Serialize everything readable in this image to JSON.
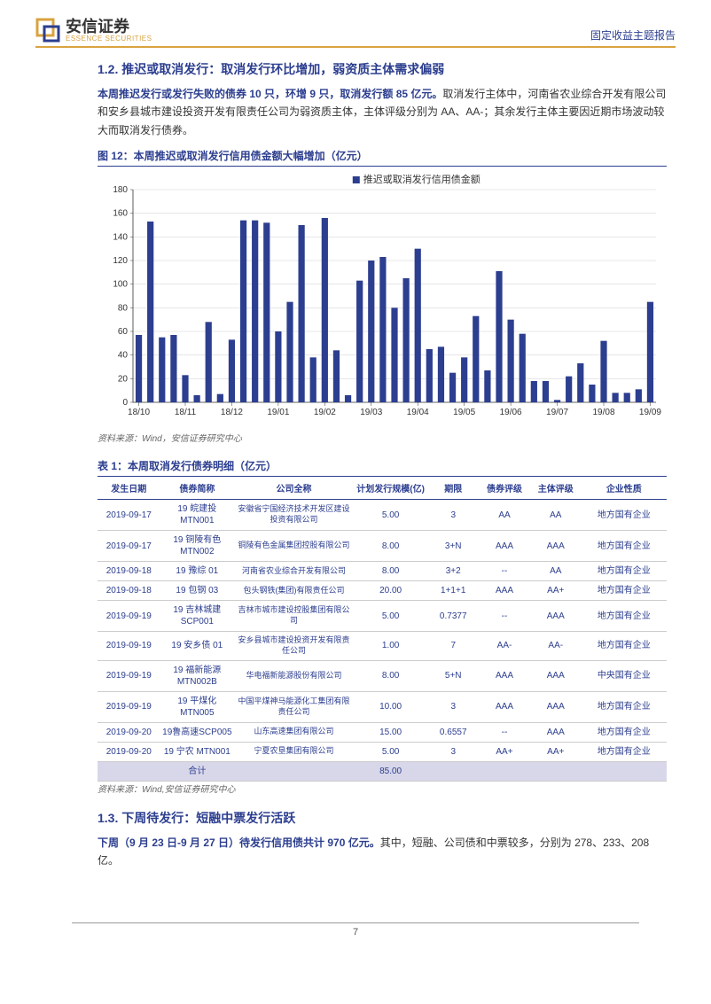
{
  "header": {
    "logo_cn": "安信证券",
    "logo_en": "ESSENCE SECURITIES",
    "report_type": "固定收益主题报告"
  },
  "section12": {
    "title": "1.2. 推迟或取消发行：取消发行环比增加，弱资质主体需求偏弱",
    "p1_bold": "本周推迟发行或发行失败的债券 10 只，环增 9 只，取消发行额 85 亿元。",
    "p1_rest": "取消发行主体中，河南省农业综合开发有限公司和安乡县城市建设投资开发有限责任公司为弱资质主体，主体评级分别为 AA、AA-；其余发行主体主要因近期市场波动较大而取消发行债券。"
  },
  "figure12": {
    "title": "图 12：本周推迟或取消发行信用债金额大幅增加（亿元）",
    "legend": "推迟或取消发行信用债金额",
    "ylim": [
      0,
      180
    ],
    "ytick_step": 20,
    "yticks": [
      0,
      20,
      40,
      60,
      80,
      100,
      120,
      140,
      160,
      180
    ],
    "xlabels": [
      "18/10",
      "18/11",
      "18/12",
      "19/01",
      "19/02",
      "19/03",
      "19/04",
      "19/05",
      "19/06",
      "19/07",
      "19/08",
      "19/09"
    ],
    "bar_color": "#2c3e8f",
    "grid_color": "#cfcfcf",
    "bg_color": "#ffffff",
    "values": [
      57,
      153,
      55,
      57,
      23,
      6,
      68,
      7,
      53,
      154,
      154,
      152,
      60,
      85,
      150,
      38,
      156,
      44,
      6,
      103,
      120,
      123,
      80,
      105,
      130,
      45,
      47,
      25,
      38,
      73,
      27,
      111,
      70,
      58,
      18,
      18,
      2,
      22,
      33,
      15,
      52,
      8,
      8,
      11,
      85
    ],
    "x_tick_positions": [
      0,
      4,
      8,
      12,
      16,
      20,
      24,
      28,
      32,
      36,
      40,
      44
    ],
    "source": "资料来源：Wind，安信证券研究中心"
  },
  "table1": {
    "title": "表 1：本周取消发行债券明细（亿元）",
    "columns": [
      "发生日期",
      "债券简称",
      "公司全称",
      "计划发行规模(亿)",
      "期限",
      "债券评级",
      "主体评级",
      "企业性质"
    ],
    "rows": [
      [
        "2019-09-17",
        "19 皖建投\nMTN001",
        "安徽省宁国经济技术开发区建设投资有限公司",
        "5.00",
        "3",
        "AA",
        "AA",
        "地方国有企业"
      ],
      [
        "2019-09-17",
        "19 铜陵有色\nMTN002",
        "铜陵有色金属集团控股有限公司",
        "8.00",
        "3+N",
        "AAA",
        "AAA",
        "地方国有企业"
      ],
      [
        "2019-09-18",
        "19 豫综 01",
        "河南省农业综合开发有限公司",
        "8.00",
        "3+2",
        "--",
        "AA",
        "地方国有企业"
      ],
      [
        "2019-09-18",
        "19 包钢 03",
        "包头钢铁(集团)有限责任公司",
        "20.00",
        "1+1+1",
        "AAA",
        "AA+",
        "地方国有企业"
      ],
      [
        "2019-09-19",
        "19 吉林城建\nSCP001",
        "吉林市城市建设控股集团有限公司",
        "5.00",
        "0.7377",
        "--",
        "AAA",
        "地方国有企业"
      ],
      [
        "2019-09-19",
        "19 安乡债 01",
        "安乡县城市建设投资开发有限责任公司",
        "1.00",
        "7",
        "AA-",
        "AA-",
        "地方国有企业"
      ],
      [
        "2019-09-19",
        "19 福新能源\nMTN002B",
        "华电福新能源股份有限公司",
        "8.00",
        "5+N",
        "AAA",
        "AAA",
        "中央国有企业"
      ],
      [
        "2019-09-19",
        "19 平煤化\nMTN005",
        "中国平煤神马能源化工集团有限责任公司",
        "10.00",
        "3",
        "AAA",
        "AAA",
        "地方国有企业"
      ],
      [
        "2019-09-20",
        "19鲁高速SCP005",
        "山东高速集团有限公司",
        "15.00",
        "0.6557",
        "--",
        "AAA",
        "地方国有企业"
      ],
      [
        "2019-09-20",
        "19 宁农 MTN001",
        "宁夏农垦集团有限公司",
        "5.00",
        "3",
        "AA+",
        "AA+",
        "地方国有企业"
      ]
    ],
    "total_label": "合计",
    "total_value": "85.00",
    "source": "资料来源：Wind,安信证券研究中心"
  },
  "section13": {
    "title": "1.3. 下周待发行：短融中票发行活跃",
    "p1_bold": "下周（9 月 23 日-9 月 27 日）待发行信用债共计 970 亿元。",
    "p1_rest": "其中，短融、公司债和中票较多，分别为 278、233、208 亿。"
  },
  "page_number": "7"
}
